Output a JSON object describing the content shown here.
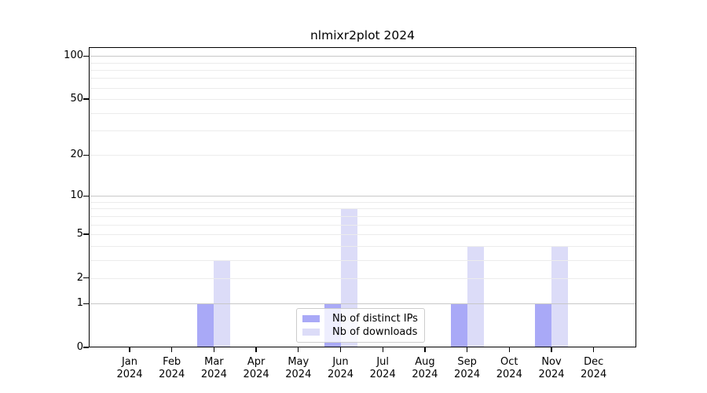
{
  "chart_data": {
    "type": "bar",
    "title": "nlmixr2plot 2024",
    "categories": [
      "Jan",
      "Feb",
      "Mar",
      "Apr",
      "May",
      "Jun",
      "Jul",
      "Aug",
      "Sep",
      "Oct",
      "Nov",
      "Dec"
    ],
    "category_year_label": "2024",
    "series": [
      {
        "name": "Nb of distinct IPs",
        "color": "#a9a9f7",
        "values": [
          0,
          0,
          1,
          0,
          0,
          1,
          0,
          0,
          1,
          0,
          1,
          0
        ]
      },
      {
        "name": "Nb of downloads",
        "color": "#dcdcf8",
        "values": [
          0,
          0,
          3,
          0,
          0,
          8,
          0,
          0,
          4,
          0,
          4,
          0
        ]
      }
    ],
    "y_scale": "log1p",
    "ylim": [
      0,
      115
    ],
    "y_ticks": [
      0,
      1,
      2,
      5,
      10,
      20,
      50,
      100
    ],
    "y_major_gridlines": [
      1,
      10,
      100
    ],
    "y_minor_gridlines": [
      2,
      3,
      4,
      5,
      6,
      7,
      8,
      9,
      20,
      30,
      40,
      50,
      60,
      70,
      80,
      90
    ],
    "grid": "horizontal",
    "legend_position": "lower-center",
    "colors": {
      "grid_major": "#c8c8c8",
      "grid_minor": "#ececec",
      "axis": "#000000",
      "background": "#ffffff"
    }
  }
}
